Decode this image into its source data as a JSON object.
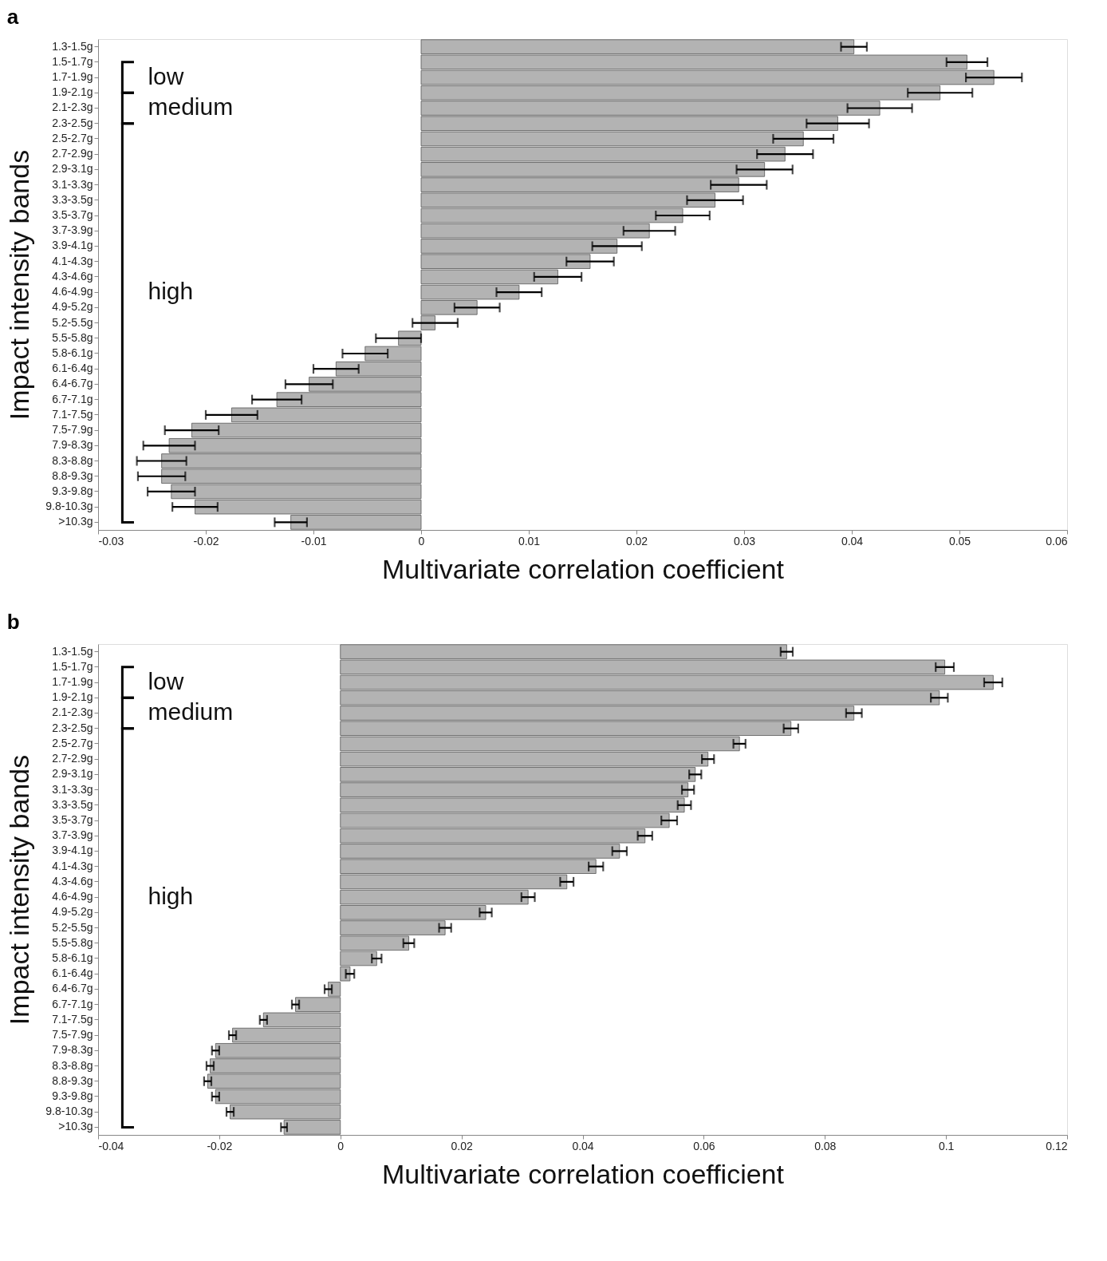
{
  "chart_data": [
    {
      "type": "bar",
      "orientation": "horizontal",
      "title": "a",
      "xlabel": "Multivariate correlation coefficient",
      "ylabel": "Impact intensity bands",
      "color": "#b3b3b3",
      "categories": [
        "1.3-1.5g",
        "1.5-1.7g",
        "1.7-1.9g",
        "1.9-2.1g",
        "2.1-2.3g",
        "2.3-2.5g",
        "2.5-2.7g",
        "2.7-2.9g",
        "2.9-3.1g",
        "3.1-3.3g",
        "3.3-3.5g",
        "3.5-3.7g",
        "3.7-3.9g",
        "3.9-4.1g",
        "4.1-4.3g",
        "4.3-4.6g",
        "4.6-4.9g",
        "4.9-5.2g",
        "5.2-5.5g",
        "5.5-5.8g",
        "5.8-6.1g",
        "6.1-6.4g",
        "6.4-6.7g",
        "6.7-7.1g",
        "7.1-7.5g",
        "7.5-7.9g",
        "7.9-8.3g",
        "8.3-8.8g",
        "8.8-9.3g",
        "9.3-9.8g",
        "9.8-10.3g",
        ">10.3g"
      ],
      "values": [
        0.0402,
        0.0507,
        0.0532,
        0.0482,
        0.0426,
        0.0387,
        0.0355,
        0.0338,
        0.0319,
        0.0295,
        0.0273,
        0.0243,
        0.0212,
        0.0182,
        0.0157,
        0.0127,
        0.0091,
        0.0052,
        0.0013,
        -0.0021,
        -0.0052,
        -0.0079,
        -0.0104,
        -0.0134,
        -0.0176,
        -0.0213,
        -0.0234,
        -0.0241,
        -0.0241,
        -0.0232,
        -0.021,
        -0.0121
      ],
      "errors": [
        0.0012,
        0.0019,
        0.0026,
        0.003,
        0.003,
        0.0029,
        0.0028,
        0.0026,
        0.0026,
        0.0026,
        0.0026,
        0.0025,
        0.0024,
        0.0023,
        0.0022,
        0.0022,
        0.0021,
        0.0021,
        0.0021,
        0.0021,
        0.0021,
        0.0021,
        0.0022,
        0.0023,
        0.0024,
        0.0025,
        0.0024,
        0.0023,
        0.0022,
        0.0022,
        0.0021,
        0.0015
      ],
      "xlim": [
        -0.03,
        0.06
      ],
      "xticks": [
        -0.03,
        -0.02,
        -0.01,
        0,
        0.01,
        0.02,
        0.03,
        0.04,
        0.05,
        0.06
      ],
      "annotations": [
        "low",
        "medium",
        "high"
      ]
    },
    {
      "type": "bar",
      "orientation": "horizontal",
      "title": "b",
      "xlabel": "Multivariate correlation coefficient",
      "ylabel": "Impact intensity bands",
      "color": "#b3b3b3",
      "categories": [
        "1.3-1.5g",
        "1.5-1.7g",
        "1.7-1.9g",
        "1.9-2.1g",
        "2.1-2.3g",
        "2.3-2.5g",
        "2.5-2.7g",
        "2.7-2.9g",
        "2.9-3.1g",
        "3.1-3.3g",
        "3.3-3.5g",
        "3.5-3.7g",
        "3.7-3.9g",
        "3.9-4.1g",
        "4.1-4.3g",
        "4.3-4.6g",
        "4.6-4.9g",
        "4.9-5.2g",
        "5.2-5.5g",
        "5.5-5.8g",
        "5.8-6.1g",
        "6.1-6.4g",
        "6.4-6.7g",
        "6.7-7.1g",
        "7.1-7.5g",
        "7.5-7.9g",
        "7.9-8.3g",
        "8.3-8.8g",
        "8.8-9.3g",
        "9.3-9.8g",
        "9.8-10.3g",
        ">10.3g"
      ],
      "values": [
        0.0737,
        0.0998,
        0.1078,
        0.0989,
        0.0848,
        0.0744,
        0.0659,
        0.0607,
        0.0586,
        0.0574,
        0.0568,
        0.0543,
        0.0503,
        0.0461,
        0.0422,
        0.0374,
        0.031,
        0.024,
        0.0173,
        0.0113,
        0.006,
        0.0016,
        -0.002,
        -0.0074,
        -0.0127,
        -0.0178,
        -0.0206,
        -0.0215,
        -0.0219,
        -0.0206,
        -0.0182,
        -0.0093
      ],
      "errors": [
        0.001,
        0.0015,
        0.0015,
        0.0014,
        0.0013,
        0.0012,
        0.001,
        0.001,
        0.001,
        0.001,
        0.0011,
        0.0013,
        0.0012,
        0.0012,
        0.0012,
        0.0011,
        0.0011,
        0.001,
        0.001,
        0.0009,
        0.0008,
        0.0007,
        0.0006,
        0.0006,
        0.0006,
        0.0006,
        0.0006,
        0.0006,
        0.0006,
        0.0006,
        0.0006,
        0.0005
      ],
      "xlim": [
        -0.04,
        0.12
      ],
      "xticks": [
        -0.04,
        -0.02,
        0,
        0.02,
        0.04,
        0.06,
        0.08,
        0.1,
        0.12
      ],
      "annotations": [
        "low",
        "medium",
        "high"
      ]
    }
  ]
}
